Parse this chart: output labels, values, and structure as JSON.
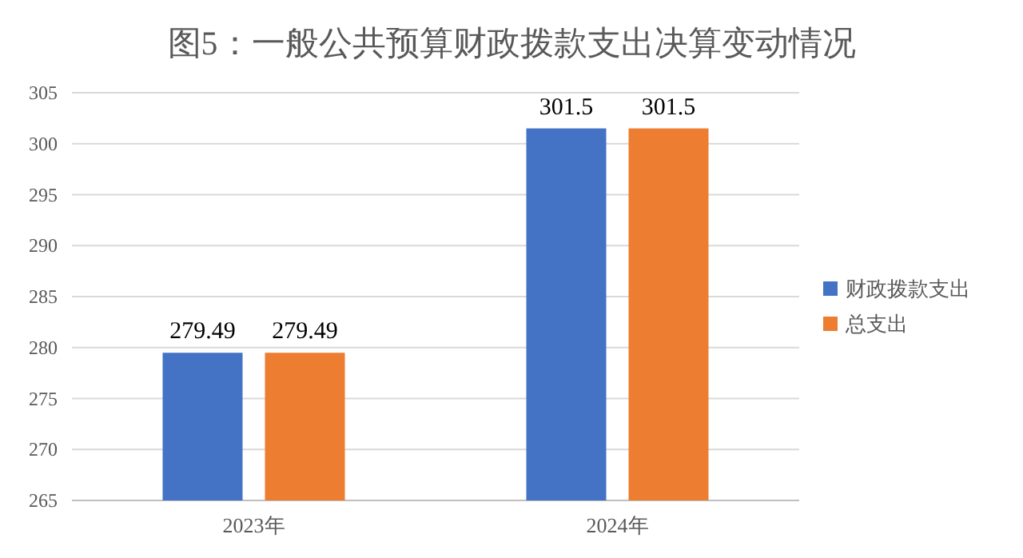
{
  "chart_data": {
    "type": "bar",
    "title": "图5：一般公共预算财政拨款支出决算变动情况",
    "categories": [
      "2023年",
      "2024年"
    ],
    "series": [
      {
        "name": "财政拨款支出",
        "color": "#4472c4",
        "values": [
          279.49,
          301.5
        ]
      },
      {
        "name": "总支出",
        "color": "#ed7d31",
        "values": [
          279.49,
          301.5
        ]
      }
    ],
    "ylim": [
      265,
      305
    ],
    "yticks": [
      265,
      270,
      275,
      280,
      285,
      290,
      295,
      300,
      305
    ],
    "grid": "y",
    "legend": "right",
    "data_labels": true
  }
}
